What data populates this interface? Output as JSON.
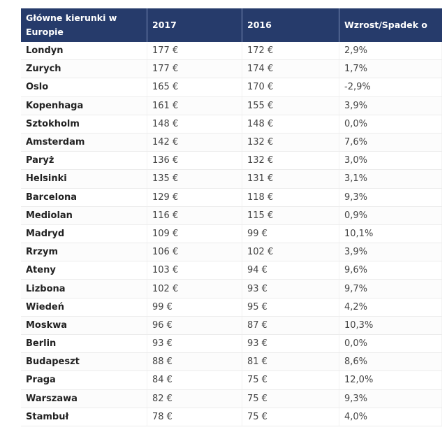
{
  "table": {
    "headers": [
      "Główne kierunki w Europie",
      "2017",
      "2016",
      "Wzrost/Spadek o"
    ],
    "rows": [
      [
        "Londyn",
        "177 €",
        "172 €",
        "2,9%"
      ],
      [
        "Zurych",
        "177 €",
        "174 €",
        "1,7%"
      ],
      [
        "Oslo",
        "165 €",
        "170 €",
        "-2,9%"
      ],
      [
        "Kopenhaga",
        "161 €",
        "155 €",
        "3,9%"
      ],
      [
        "Sztokholm",
        "148 €",
        "148 €",
        "0,0%"
      ],
      [
        "Amsterdam",
        "142 €",
        "132 €",
        "7,6%"
      ],
      [
        "Paryż",
        "136 €",
        "132 €",
        "3,0%"
      ],
      [
        "Helsinki",
        "135 €",
        "131 €",
        "3,1%"
      ],
      [
        "Barcelona",
        "129 €",
        "118 €",
        "9,3%"
      ],
      [
        "Mediolan",
        "116 €",
        "115 €",
        "0,9%"
      ],
      [
        "Madryd",
        "109 €",
        "99 €",
        "10,1%"
      ],
      [
        "Rrzym",
        "106 €",
        "102 €",
        "3,9%"
      ],
      [
        "Ateny",
        "103 €",
        "94 €",
        "9,6%"
      ],
      [
        "Lizbona",
        "102 €",
        "93 €",
        "9,7%"
      ],
      [
        "Wiedeń",
        "99 €",
        "95 €",
        "4,2%"
      ],
      [
        "Moskwa",
        "96 €",
        "87 €",
        "10,3%"
      ],
      [
        "Berlin",
        "93 €",
        "93 €",
        "0,0%"
      ],
      [
        "Budapeszt",
        "88 €",
        "81 €",
        "8,6%"
      ],
      [
        "Praga",
        "84 €",
        "75 €",
        "12,0%"
      ],
      [
        "Warszawa",
        "82 €",
        "75 €",
        "9,3%"
      ],
      [
        "Stambuł",
        "78 €",
        "75 €",
        "4,0%"
      ]
    ]
  }
}
